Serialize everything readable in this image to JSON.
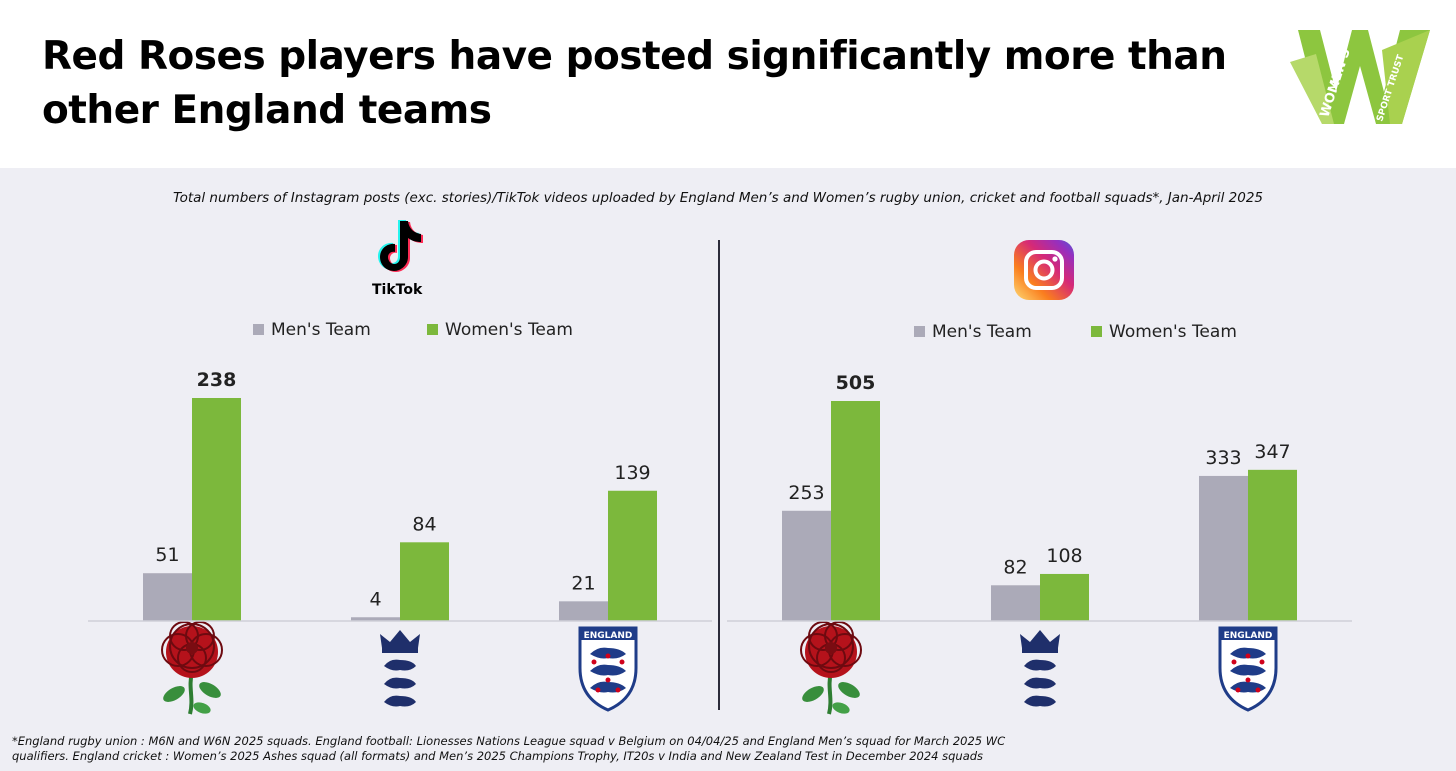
{
  "header": {
    "title_line1": "Red Roses players have posted significantly more than",
    "title_line2": "other England teams",
    "logo_text": "WOMEN'S SPORT TRUST"
  },
  "chart_data": [
    {
      "type": "bar",
      "platform": "TikTok",
      "subtitle": "Total numbers of Instagram posts (exc. stories)/TikTok videos uploaded by England Men’s and Women’s rugby union, cricket and football squads*, Jan-April 2025",
      "categories": [
        "England rugby union",
        "England cricket",
        "England football"
      ],
      "series": [
        {
          "name": "Men's Team",
          "values": [
            51,
            4,
            21
          ],
          "color": "#abaab8"
        },
        {
          "name": "Women's Team",
          "values": [
            238,
            84,
            139
          ],
          "color": "#7cb83c"
        }
      ],
      "ylim": [
        0,
        240
      ],
      "legend": "top",
      "grid": false,
      "highlight": {
        "series": 1,
        "index": 0
      }
    },
    {
      "type": "bar",
      "platform": "Instagram",
      "categories": [
        "England rugby union",
        "England cricket",
        "England football"
      ],
      "series": [
        {
          "name": "Men's Team",
          "values": [
            253,
            82,
            333
          ],
          "color": "#abaab8"
        },
        {
          "name": "Women's Team",
          "values": [
            505,
            108,
            347
          ],
          "color": "#7cb83c"
        }
      ],
      "ylim": [
        0,
        510
      ],
      "legend": "top",
      "grid": false,
      "highlight": {
        "series": 1,
        "index": 0
      }
    }
  ],
  "icons": {
    "tiktok": "tiktok-logo-icon",
    "instagram": "instagram-logo-icon",
    "rugby": "red-rose-icon",
    "cricket": "three-lions-crown-icon",
    "football": "england-crest-icon"
  },
  "crest_text": "ENGLAND",
  "footnote": {
    "line1": "*England rugby union : M6N and W6N 2025 squads. England football: Lionesses Nations League squad v Belgium on 04/04/25 and England Men’s squad for March 2025 WC",
    "line2": "qualifiers. England cricket : Women’s 2025 Ashes squad (all formats) and Men’s 2025 Champions Trophy,  IT20s v India and New Zealand Test in December 2024 squads"
  }
}
